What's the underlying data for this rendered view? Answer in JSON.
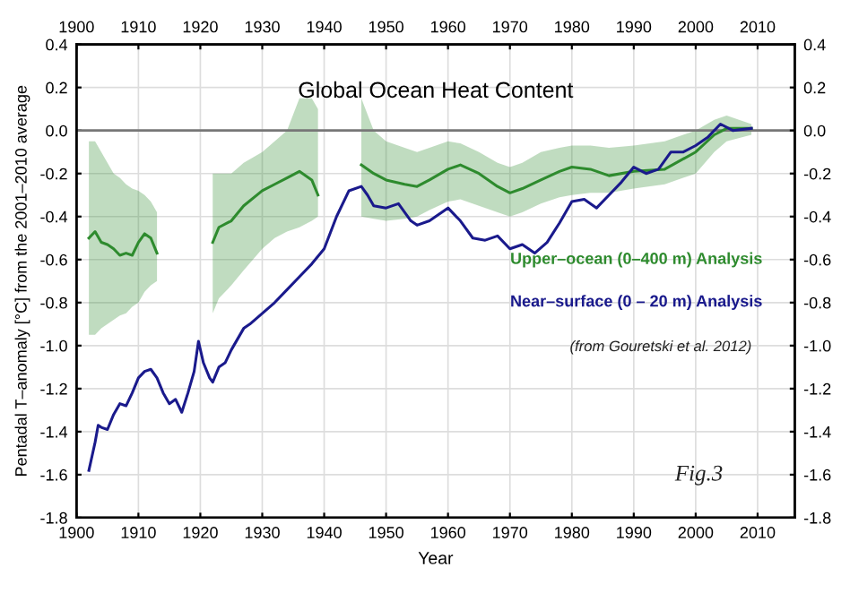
{
  "chart_data": {
    "type": "line",
    "title": "Global Ocean Heat Content",
    "xlabel": "Year",
    "ylabel": "Pentadal T–anomaly [°C] from the 2001–2010 average",
    "series": [
      {
        "name": "Upper–ocean (0–400 m) Analysis",
        "color": "#2e8b2e",
        "x": [
          1902,
          1903,
          1904,
          1905,
          1906,
          1907,
          1908,
          1909,
          1910,
          1911,
          1912,
          1913,
          1914,
          1922,
          1923,
          1925,
          1927,
          1930,
          1932,
          1934,
          1936,
          1938,
          1939,
          1940,
          1946,
          1948,
          1950,
          1953,
          1955,
          1957,
          1960,
          1962,
          1965,
          1968,
          1970,
          1972,
          1975,
          1978,
          1980,
          1983,
          1986,
          1990,
          1995,
          2000,
          2003,
          2005,
          2009
        ],
        "values": [
          -0.5,
          -0.47,
          -0.52,
          -0.53,
          -0.55,
          -0.58,
          -0.57,
          -0.58,
          -0.52,
          -0.48,
          -0.5,
          -0.57,
          null,
          -0.52,
          -0.45,
          -0.42,
          -0.35,
          -0.28,
          -0.25,
          -0.22,
          -0.19,
          -0.23,
          -0.3,
          null,
          -0.16,
          -0.2,
          -0.23,
          -0.25,
          -0.26,
          -0.23,
          -0.18,
          -0.16,
          -0.2,
          -0.26,
          -0.29,
          -0.27,
          -0.23,
          -0.19,
          -0.17,
          -0.18,
          -0.21,
          -0.19,
          -0.18,
          -0.1,
          -0.02,
          0.01,
          0.01
        ],
        "upper": [
          -0.05,
          -0.05,
          -0.1,
          -0.15,
          -0.2,
          -0.22,
          -0.25,
          -0.27,
          -0.28,
          -0.3,
          -0.33,
          -0.38,
          null,
          -0.2,
          -0.2,
          -0.2,
          -0.15,
          -0.1,
          -0.05,
          0.0,
          0.15,
          0.15,
          0.1,
          null,
          0.15,
          0.0,
          -0.05,
          -0.08,
          -0.1,
          -0.08,
          -0.05,
          -0.06,
          -0.1,
          -0.15,
          -0.17,
          -0.15,
          -0.1,
          -0.08,
          -0.07,
          -0.07,
          -0.08,
          -0.07,
          -0.05,
          0.0,
          0.05,
          0.07,
          0.03
        ],
        "lower": [
          -0.95,
          -0.95,
          -0.92,
          -0.9,
          -0.88,
          -0.86,
          -0.85,
          -0.82,
          -0.8,
          -0.75,
          -0.72,
          -0.7,
          null,
          -0.85,
          -0.78,
          -0.72,
          -0.65,
          -0.55,
          -0.5,
          -0.47,
          -0.45,
          -0.42,
          -0.4,
          null,
          -0.4,
          -0.41,
          -0.42,
          -0.41,
          -0.4,
          -0.37,
          -0.33,
          -0.32,
          -0.35,
          -0.38,
          -0.4,
          -0.38,
          -0.34,
          -0.31,
          -0.3,
          -0.29,
          -0.29,
          -0.27,
          -0.25,
          -0.2,
          -0.1,
          -0.05,
          -0.02
        ]
      },
      {
        "name": "Near–surface (0 – 20 m) Analysis",
        "color": "#1a1a8c",
        "x": [
          1902,
          1903,
          1903.5,
          1904,
          1905,
          1906,
          1907,
          1908,
          1909,
          1910,
          1911,
          1912,
          1913,
          1914,
          1915,
          1916,
          1917,
          1918,
          1919,
          1919.7,
          1920.5,
          1921.5,
          1922,
          1923,
          1924,
          1925,
          1927,
          1928,
          1930,
          1932,
          1934,
          1936,
          1938,
          1940,
          1942,
          1944,
          1946,
          1947,
          1948,
          1950,
          1952,
          1954,
          1955,
          1957,
          1960,
          1962,
          1964,
          1966,
          1968,
          1970,
          1972,
          1974,
          1976,
          1978,
          1980,
          1982,
          1984,
          1986,
          1988,
          1990,
          1992,
          1994,
          1996,
          1998,
          2000,
          2002,
          2004,
          2006,
          2009
        ],
        "values": [
          -1.58,
          -1.45,
          -1.37,
          -1.38,
          -1.39,
          -1.32,
          -1.27,
          -1.28,
          -1.22,
          -1.15,
          -1.12,
          -1.11,
          -1.15,
          -1.22,
          -1.27,
          -1.25,
          -1.31,
          -1.22,
          -1.12,
          -0.98,
          -1.08,
          -1.15,
          -1.17,
          -1.1,
          -1.08,
          -1.02,
          -0.92,
          -0.9,
          -0.85,
          -0.8,
          -0.74,
          -0.68,
          -0.62,
          -0.55,
          -0.4,
          -0.28,
          -0.26,
          -0.3,
          -0.35,
          -0.36,
          -0.34,
          -0.42,
          -0.44,
          -0.42,
          -0.36,
          -0.42,
          -0.5,
          -0.51,
          -0.49,
          -0.55,
          -0.53,
          -0.57,
          -0.52,
          -0.43,
          -0.33,
          -0.32,
          -0.36,
          -0.3,
          -0.24,
          -0.17,
          -0.2,
          -0.18,
          -0.1,
          -0.1,
          -0.07,
          -0.03,
          0.03,
          0.0,
          0.01
        ]
      }
    ],
    "xlim": [
      1900,
      2016
    ],
    "ylim": [
      -1.8,
      0.4
    ],
    "y2lim": [
      -1.8,
      0.4
    ],
    "x2lim": [
      1900,
      2016
    ],
    "xticks": [
      1900,
      1910,
      1920,
      1930,
      1940,
      1950,
      1960,
      1970,
      1980,
      1990,
      2000,
      2010
    ],
    "x2ticks": [
      1900,
      1910,
      1920,
      1930,
      1940,
      1950,
      1960,
      1970,
      1980,
      1990,
      2000,
      2010
    ],
    "yticks": [
      {
        "value": 0.4,
        "label": "0.4"
      },
      {
        "value": 0.2,
        "label": "0.2"
      },
      {
        "value": 0.0,
        "label": "0.0"
      },
      {
        "value": -0.2,
        "label": "-0.2"
      },
      {
        "value": -0.4,
        "label": "-0.4"
      },
      {
        "value": -0.6,
        "label": "-0.6"
      },
      {
        "value": -0.8,
        "label": "-0.8"
      },
      {
        "value": -1.0,
        "label": "-1.0"
      },
      {
        "value": -1.2,
        "label": "-1.2"
      },
      {
        "value": -1.4,
        "label": "-1.4"
      },
      {
        "value": -1.6,
        "label": "-1.6"
      },
      {
        "value": -1.8,
        "label": "-1.8"
      }
    ],
    "y2ticks": [
      {
        "value": 0.4,
        "label": "0.4"
      },
      {
        "value": 0.2,
        "label": "0.2"
      },
      {
        "value": 0.0,
        "label": "0.0"
      },
      {
        "value": -0.2,
        "label": "-0.2"
      },
      {
        "value": -0.4,
        "label": "-0.4"
      },
      {
        "value": -0.6,
        "label": "-0.6"
      },
      {
        "value": -0.8,
        "label": "-0.8"
      },
      {
        "value": -1.0,
        "label": "-1.0"
      },
      {
        "value": -1.2,
        "label": "-1.2"
      },
      {
        "value": -1.4,
        "label": "-1.4"
      },
      {
        "value": -1.6,
        "label": "-1.6"
      },
      {
        "value": -1.8,
        "label": "-1.8"
      }
    ],
    "ref_lines": [
      {
        "axis": "y",
        "value": 0.0,
        "color": "#777777"
      }
    ],
    "annotations": [
      "(from Gouretski et al. 2012)",
      "Fig.3"
    ],
    "grid": true,
    "marker": "none",
    "line_style": "solid"
  }
}
